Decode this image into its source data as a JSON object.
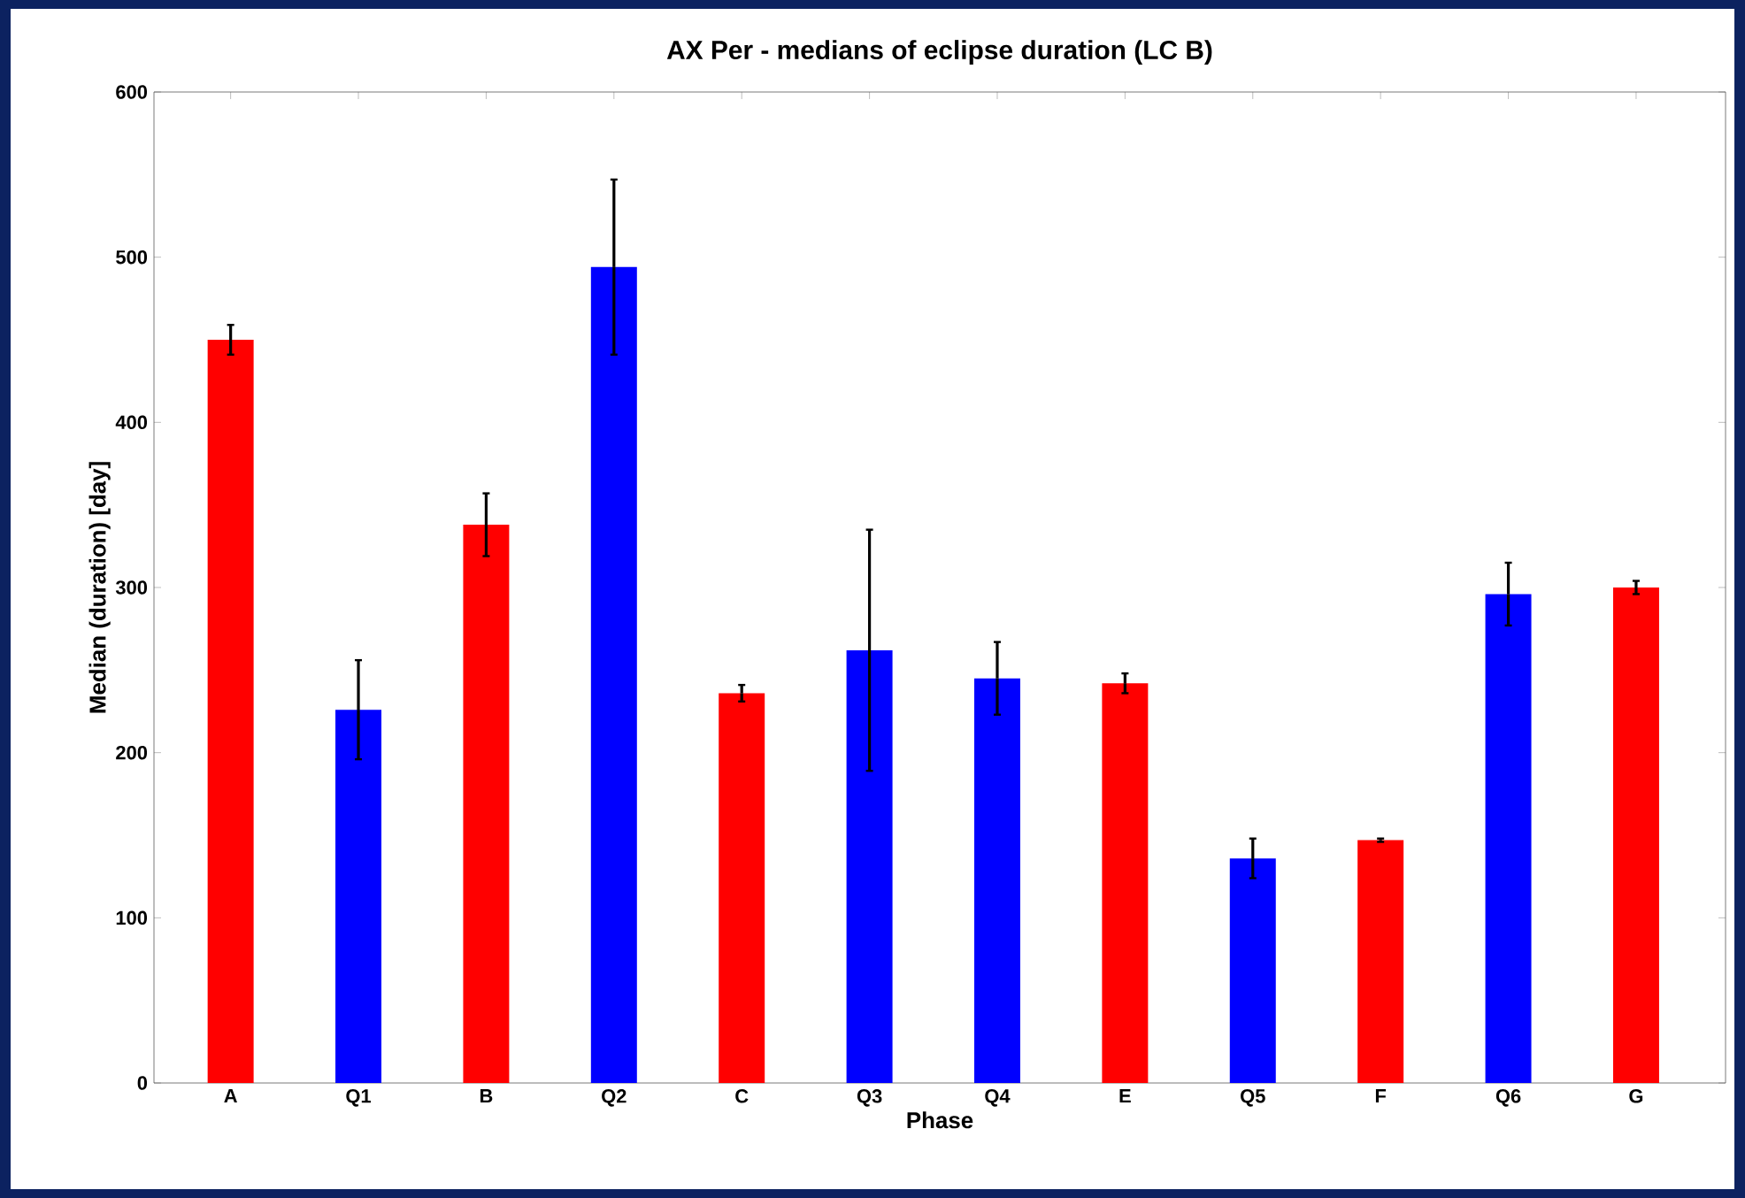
{
  "chart_data": {
    "type": "bar",
    "title": "AX Per - medians of eclipse duration (LC B)",
    "xlabel": "Phase",
    "ylabel": "Median (duration) [day]",
    "categories": [
      "A",
      "Q1",
      "B",
      "Q2",
      "C",
      "Q3",
      "Q4",
      "E",
      "Q5",
      "F",
      "Q6",
      "G"
    ],
    "values": [
      450,
      226,
      338,
      494,
      236,
      262,
      245,
      242,
      136,
      147,
      296,
      300
    ],
    "errors": [
      9,
      30,
      19,
      53,
      5,
      73,
      22,
      6,
      12,
      1,
      19,
      4
    ],
    "colors": [
      "#ff0000",
      "#0000ff",
      "#ff0000",
      "#0000ff",
      "#ff0000",
      "#0000ff",
      "#0000ff",
      "#ff0000",
      "#0000ff",
      "#ff0000",
      "#0000ff",
      "#ff0000"
    ],
    "ylim": [
      0,
      600
    ],
    "yticks": [
      0,
      100,
      200,
      300,
      400,
      500,
      600
    ]
  }
}
